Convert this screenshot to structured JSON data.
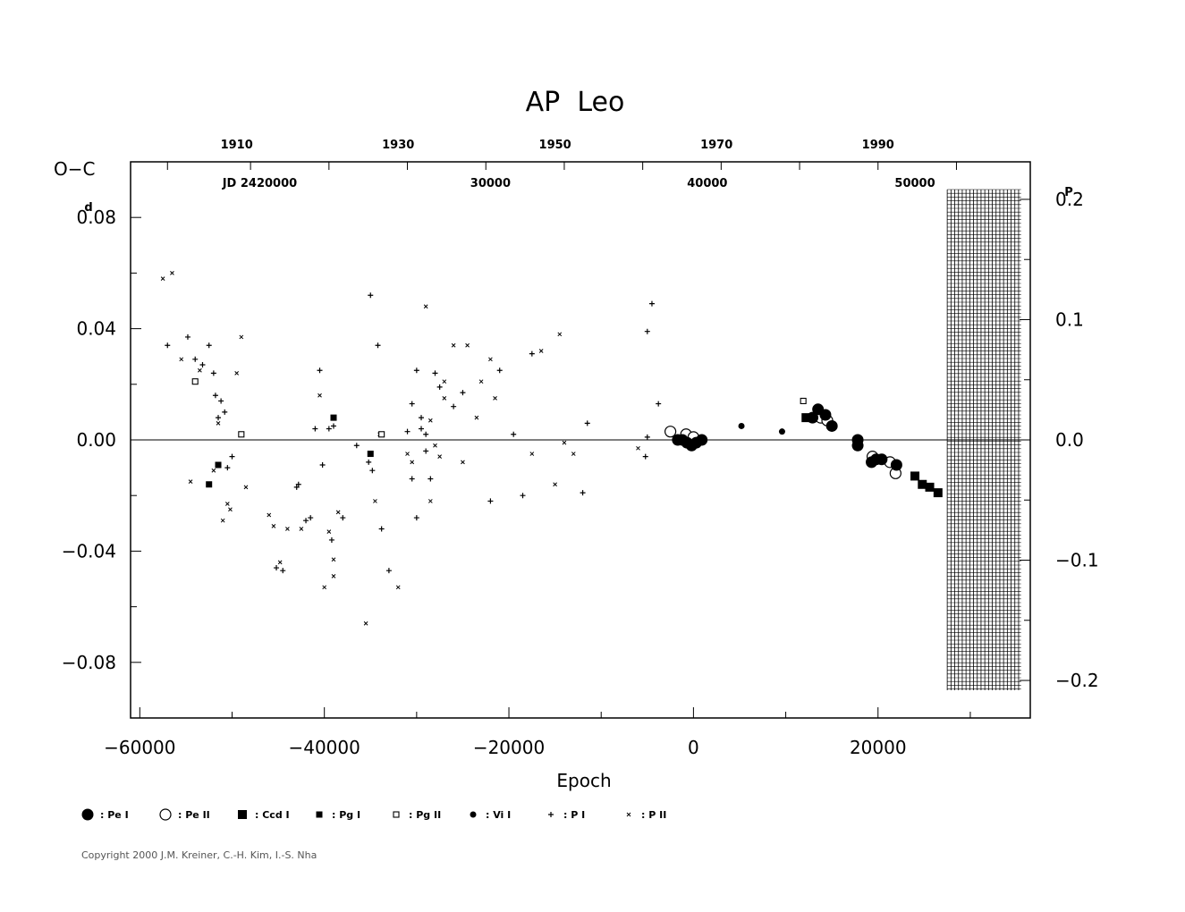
{
  "chart_data": {
    "type": "scatter",
    "title": "AP  Leo",
    "xlabel": "Epoch",
    "ylabel": "O−C",
    "xlim": [
      -61000,
      36500
    ],
    "ylim": [
      -0.1,
      0.1
    ],
    "ylim_right": [
      -0.2312,
      0.2312
    ],
    "x_ticks": [
      "−60000",
      "−40000",
      "−20000",
      "0",
      "20000"
    ],
    "x_tick_values": [
      -60000,
      -40000,
      -20000,
      0,
      20000
    ],
    "y_ticks": [
      "−0.08",
      "−0.04",
      "0.00",
      "0.04",
      "0.08"
    ],
    "y_tick_values": [
      -0.08,
      -0.04,
      0.0,
      0.04,
      0.08
    ],
    "y_unit_left": "d",
    "y_ticks_right": [
      "−0.2",
      "−0.1",
      "0.0",
      "0.1",
      "0.2"
    ],
    "y_tick_right_values": [
      -0.2,
      -0.1,
      0.0,
      0.1,
      0.2
    ],
    "y_unit_right": "P",
    "top_years": [
      "1910",
      "1930",
      "1950",
      "1970",
      "1990"
    ],
    "top_year_epochs": [
      -49500,
      -32000,
      -15000,
      2500,
      20000
    ],
    "top_jd_labels": [
      "JD  2420000",
      "30000",
      "40000",
      "50000"
    ],
    "top_jd_epochs": [
      -47000,
      -22000,
      1500,
      24000
    ],
    "top_ticks": [
      -57000,
      -48000,
      -39500,
      -31000,
      -22500,
      -14000,
      -5500,
      3000,
      11500,
      20000,
      28500
    ],
    "future_hatch": [
      27500,
      35500
    ],
    "legend": [
      {
        "symbol": "circle-filled-large",
        "label": ": Pe I"
      },
      {
        "symbol": "circle-open-large",
        "label": ": Pe II"
      },
      {
        "symbol": "square-filled-large",
        "label": ": Ccd I"
      },
      {
        "symbol": "square-filled-small",
        "label": ": Pg I"
      },
      {
        "symbol": "square-open-small",
        "label": ": Pg II"
      },
      {
        "symbol": "circle-filled-small",
        "label": ": Vi I"
      },
      {
        "symbol": "plus",
        "label": ": P I"
      },
      {
        "symbol": "cross",
        "label": ": P II"
      }
    ],
    "series": [
      {
        "name": "Pe I",
        "symbol": "circle-filled-large",
        "points": [
          [
            -1700,
            0.0
          ],
          [
            -1200,
            0.0
          ],
          [
            -700,
            -0.001
          ],
          [
            -200,
            -0.002
          ],
          [
            300,
            -0.001
          ],
          [
            900,
            0.0
          ],
          [
            12900,
            0.008
          ],
          [
            13500,
            0.011
          ],
          [
            14300,
            0.009
          ],
          [
            15000,
            0.005
          ],
          [
            17800,
            0.0
          ],
          [
            17800,
            -0.002
          ],
          [
            19300,
            -0.008
          ],
          [
            19800,
            -0.007
          ],
          [
            20400,
            -0.007
          ],
          [
            22000,
            -0.009
          ]
        ]
      },
      {
        "name": "Pe II",
        "symbol": "circle-open-large",
        "points": [
          [
            -2500,
            0.003
          ],
          [
            -800,
            0.002
          ],
          [
            0,
            0.001
          ],
          [
            13800,
            0.008
          ],
          [
            14500,
            0.007
          ],
          [
            19400,
            -0.006
          ],
          [
            21300,
            -0.008
          ],
          [
            21900,
            -0.012
          ]
        ]
      },
      {
        "name": "Ccd I",
        "symbol": "square-filled-large",
        "points": [
          [
            12200,
            0.008
          ],
          [
            24000,
            -0.013
          ],
          [
            24800,
            -0.016
          ],
          [
            25600,
            -0.017
          ],
          [
            26500,
            -0.019
          ]
        ]
      },
      {
        "name": "Pg I",
        "symbol": "square-filled-small",
        "points": [
          [
            -51500,
            -0.009
          ],
          [
            -52500,
            -0.016
          ],
          [
            -39000,
            0.008
          ],
          [
            -35000,
            -0.005
          ]
        ]
      },
      {
        "name": "Pg II",
        "symbol": "square-open-small",
        "points": [
          [
            -54000,
            0.021
          ],
          [
            -49000,
            0.002
          ],
          [
            -33800,
            0.002
          ],
          [
            11900,
            0.014
          ]
        ]
      },
      {
        "name": "Vi I",
        "symbol": "circle-filled-small",
        "points": [
          [
            5200,
            0.005
          ],
          [
            9600,
            0.003
          ]
        ]
      },
      {
        "name": "P I",
        "symbol": "plus",
        "points": [
          [
            -57000,
            0.034
          ],
          [
            -54800,
            0.037
          ],
          [
            -54000,
            0.029
          ],
          [
            -53200,
            0.027
          ],
          [
            -52500,
            0.034
          ],
          [
            -52000,
            0.024
          ],
          [
            -51800,
            0.016
          ],
          [
            -51500,
            0.008
          ],
          [
            -51200,
            0.014
          ],
          [
            -50800,
            0.01
          ],
          [
            -50500,
            -0.01
          ],
          [
            -50000,
            -0.006
          ],
          [
            -40500,
            0.025
          ],
          [
            -39500,
            0.004
          ],
          [
            -39000,
            0.005
          ],
          [
            -43000,
            -0.017
          ],
          [
            -42000,
            -0.029
          ],
          [
            -41500,
            -0.028
          ],
          [
            -40200,
            -0.009
          ],
          [
            -41000,
            0.004
          ],
          [
            -44500,
            -0.047
          ],
          [
            -45200,
            -0.046
          ],
          [
            -42800,
            -0.016
          ],
          [
            -39200,
            -0.036
          ],
          [
            -38000,
            -0.028
          ],
          [
            -36500,
            -0.002
          ],
          [
            -35200,
            -0.008
          ],
          [
            -34800,
            -0.011
          ],
          [
            -35000,
            0.052
          ],
          [
            -34200,
            0.034
          ],
          [
            -33800,
            -0.032
          ],
          [
            -33000,
            -0.047
          ],
          [
            -30500,
            0.013
          ],
          [
            -30000,
            0.025
          ],
          [
            -29500,
            0.008
          ],
          [
            -29000,
            -0.004
          ],
          [
            -28500,
            -0.014
          ],
          [
            -28000,
            0.024
          ],
          [
            -27500,
            0.019
          ],
          [
            -30000,
            -0.028
          ],
          [
            -30500,
            -0.014
          ],
          [
            -29000,
            0.002
          ],
          [
            -26000,
            0.012
          ],
          [
            -25000,
            0.017
          ],
          [
            -21000,
            0.025
          ],
          [
            -22000,
            -0.022
          ],
          [
            -19500,
            0.002
          ],
          [
            -18500,
            -0.02
          ],
          [
            -17500,
            0.031
          ],
          [
            -11500,
            0.006
          ],
          [
            -12000,
            -0.019
          ],
          [
            -5000,
            0.039
          ],
          [
            -4500,
            0.049
          ],
          [
            -3800,
            0.013
          ],
          [
            -5000,
            0.001
          ],
          [
            -5200,
            -0.006
          ],
          [
            -29500,
            0.004
          ],
          [
            -31000,
            0.003
          ]
        ]
      },
      {
        "name": "P II",
        "symbol": "cross",
        "points": [
          [
            -57500,
            0.058
          ],
          [
            -56500,
            0.06
          ],
          [
            -55500,
            0.029
          ],
          [
            -54500,
            -0.015
          ],
          [
            -53500,
            0.025
          ],
          [
            -52000,
            -0.011
          ],
          [
            -51500,
            0.006
          ],
          [
            -51000,
            -0.029
          ],
          [
            -50500,
            -0.023
          ],
          [
            -50200,
            -0.025
          ],
          [
            -49500,
            0.024
          ],
          [
            -49000,
            0.037
          ],
          [
            -48500,
            -0.017
          ],
          [
            -46000,
            -0.027
          ],
          [
            -45500,
            -0.031
          ],
          [
            -44800,
            -0.044
          ],
          [
            -44000,
            -0.032
          ],
          [
            -42500,
            -0.032
          ],
          [
            -40500,
            0.016
          ],
          [
            -40000,
            -0.053
          ],
          [
            -39500,
            -0.033
          ],
          [
            -39000,
            -0.043
          ],
          [
            -38500,
            -0.026
          ],
          [
            -39000,
            -0.049
          ],
          [
            -35500,
            -0.066
          ],
          [
            -34500,
            -0.022
          ],
          [
            -34000,
            0.002
          ],
          [
            -32000,
            -0.053
          ],
          [
            -31000,
            -0.005
          ],
          [
            -30500,
            -0.008
          ],
          [
            -29000,
            0.048
          ],
          [
            -28500,
            0.007
          ],
          [
            -28000,
            -0.002
          ],
          [
            -27500,
            -0.006
          ],
          [
            -28500,
            -0.022
          ],
          [
            -27000,
            0.015
          ],
          [
            -26000,
            0.034
          ],
          [
            -25000,
            -0.008
          ],
          [
            -24500,
            0.034
          ],
          [
            -23500,
            0.008
          ],
          [
            -23000,
            0.021
          ],
          [
            -22000,
            0.029
          ],
          [
            -21500,
            0.015
          ],
          [
            -17500,
            -0.005
          ],
          [
            -16500,
            0.032
          ],
          [
            -14500,
            0.038
          ],
          [
            -15000,
            -0.016
          ],
          [
            -13000,
            -0.005
          ],
          [
            -14000,
            -0.001
          ],
          [
            -6000,
            -0.003
          ],
          [
            -27000,
            0.021
          ]
        ]
      }
    ]
  },
  "copyright": "Copyright 2000 J.M. Kreiner, C.-H. Kim, I.-S. Nha"
}
